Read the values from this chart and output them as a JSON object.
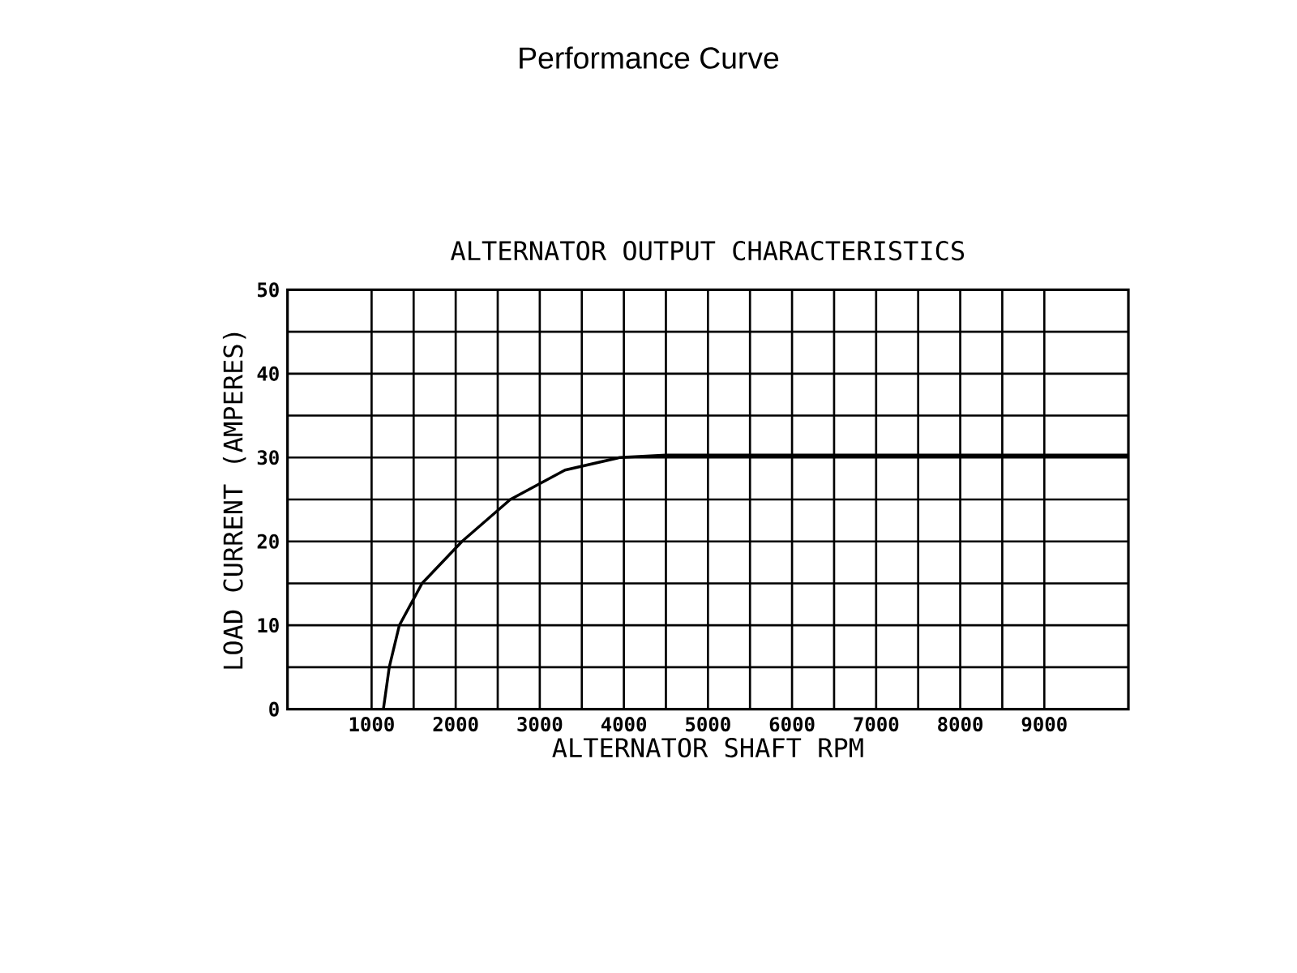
{
  "chart_data": {
    "type": "line",
    "title": "Performance Curve",
    "subtitle": "ALTERNATOR OUTPUT CHARACTERISTICS",
    "xlabel": "ALTERNATOR SHAFT RPM",
    "ylabel": "LOAD CURRENT (AMPERES)",
    "x": [
      1140,
      1210,
      1330,
      1600,
      2075,
      2650,
      3300,
      3950,
      4500,
      10000
    ],
    "series": [
      {
        "color": "#000000",
        "values": [
          0,
          5,
          10,
          15,
          20,
          25,
          28.5,
          30,
          30.3,
          30.3
        ]
      }
    ],
    "xlim": [
      0,
      10000
    ],
    "ylim": [
      0,
      50
    ],
    "xticks": [
      1000,
      2000,
      3000,
      4000,
      5000,
      6000,
      7000,
      8000,
      9000
    ],
    "yticks": [
      0,
      10,
      20,
      30,
      40,
      50
    ],
    "grid": true,
    "marker": "none",
    "line_style": "solid"
  }
}
